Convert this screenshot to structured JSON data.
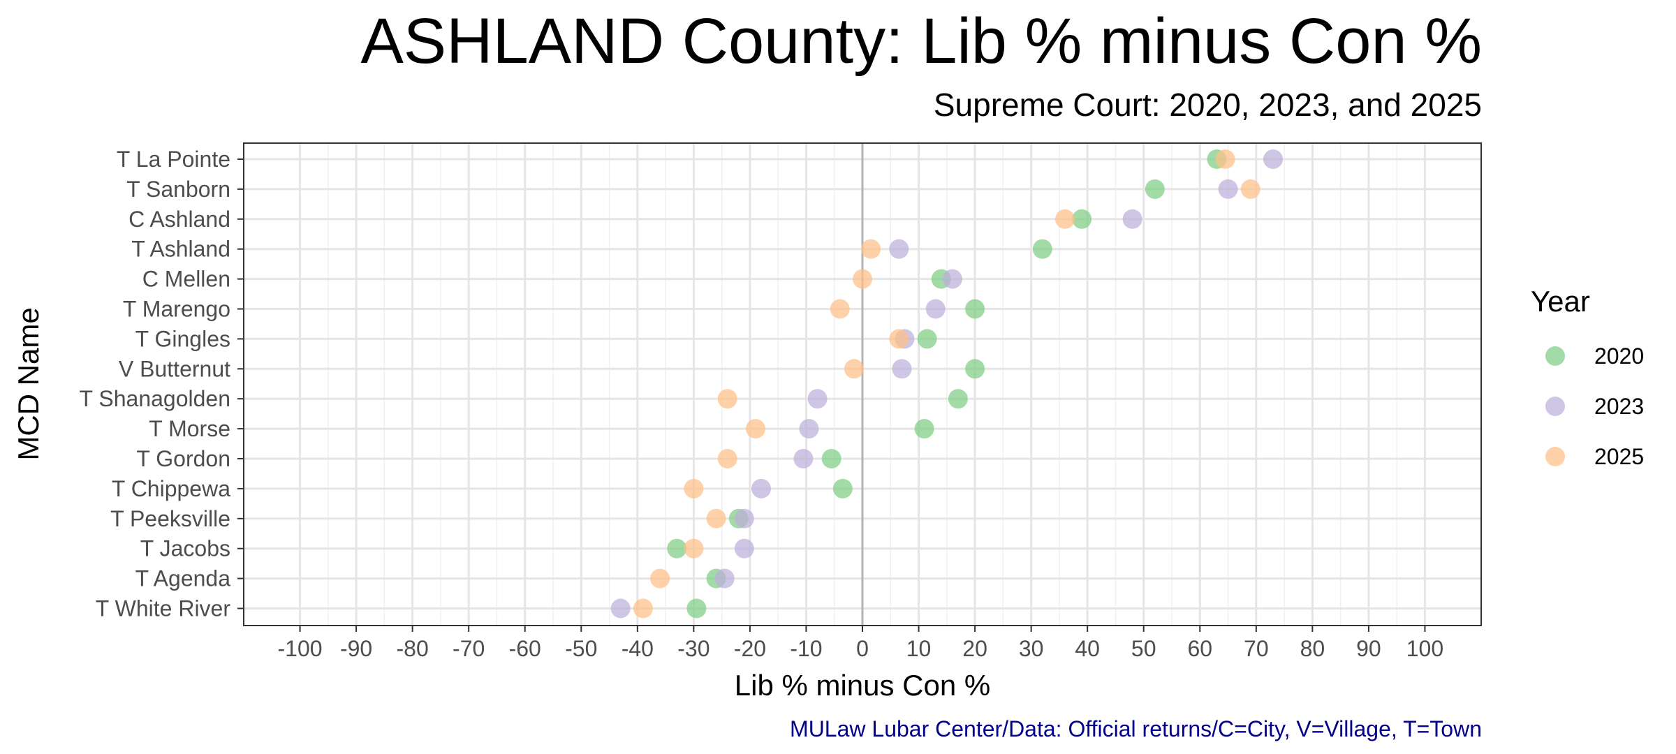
{
  "chart_data": {
    "type": "scatter",
    "title": "ASHLAND County: Lib % minus Con %",
    "subtitle": "Supreme Court: 2020, 2023, and 2025",
    "xlabel": "Lib % minus Con %",
    "ylabel": "MCD Name",
    "caption": "MULaw Lubar Center/Data: Official returns/C=City, V=Village, T=Town",
    "xlim": [
      -110,
      110
    ],
    "xticks": [
      -100,
      -90,
      -80,
      -70,
      -60,
      -50,
      -40,
      -30,
      -20,
      -10,
      0,
      10,
      20,
      30,
      40,
      50,
      60,
      70,
      80,
      90,
      100
    ],
    "grid": true,
    "legend_position": "right",
    "legend_title": "Year",
    "categories": [
      "T La Pointe",
      "T Sanborn",
      "C Ashland",
      "T Ashland",
      "C Mellen",
      "T Marengo",
      "T Gingles",
      "V Butternut",
      "T Shanagolden",
      "T Morse",
      "T Gordon",
      "T Chippewa",
      "T Peeksville",
      "T Jacobs",
      "T Agenda",
      "T White River"
    ],
    "series": [
      {
        "name": "2020",
        "color": "#7fcd85",
        "values": [
          63,
          52,
          39,
          32,
          14,
          20,
          11.5,
          20,
          17,
          11,
          -5.5,
          -3.5,
          -22,
          -33,
          -26,
          -29.5
        ]
      },
      {
        "name": "2023",
        "color": "#bcaed9",
        "values": [
          73,
          65,
          48,
          6.5,
          16,
          13,
          7.5,
          7,
          -8,
          -9.5,
          -10.5,
          -18,
          -21,
          -21,
          -24.5,
          -43
        ]
      },
      {
        "name": "2025",
        "color": "#ffbf87",
        "values": [
          64.5,
          69,
          36,
          1.5,
          0,
          -4,
          6.5,
          -1.5,
          -24,
          -19,
          -24,
          -30,
          -26,
          -30,
          -36,
          -39
        ]
      }
    ]
  }
}
